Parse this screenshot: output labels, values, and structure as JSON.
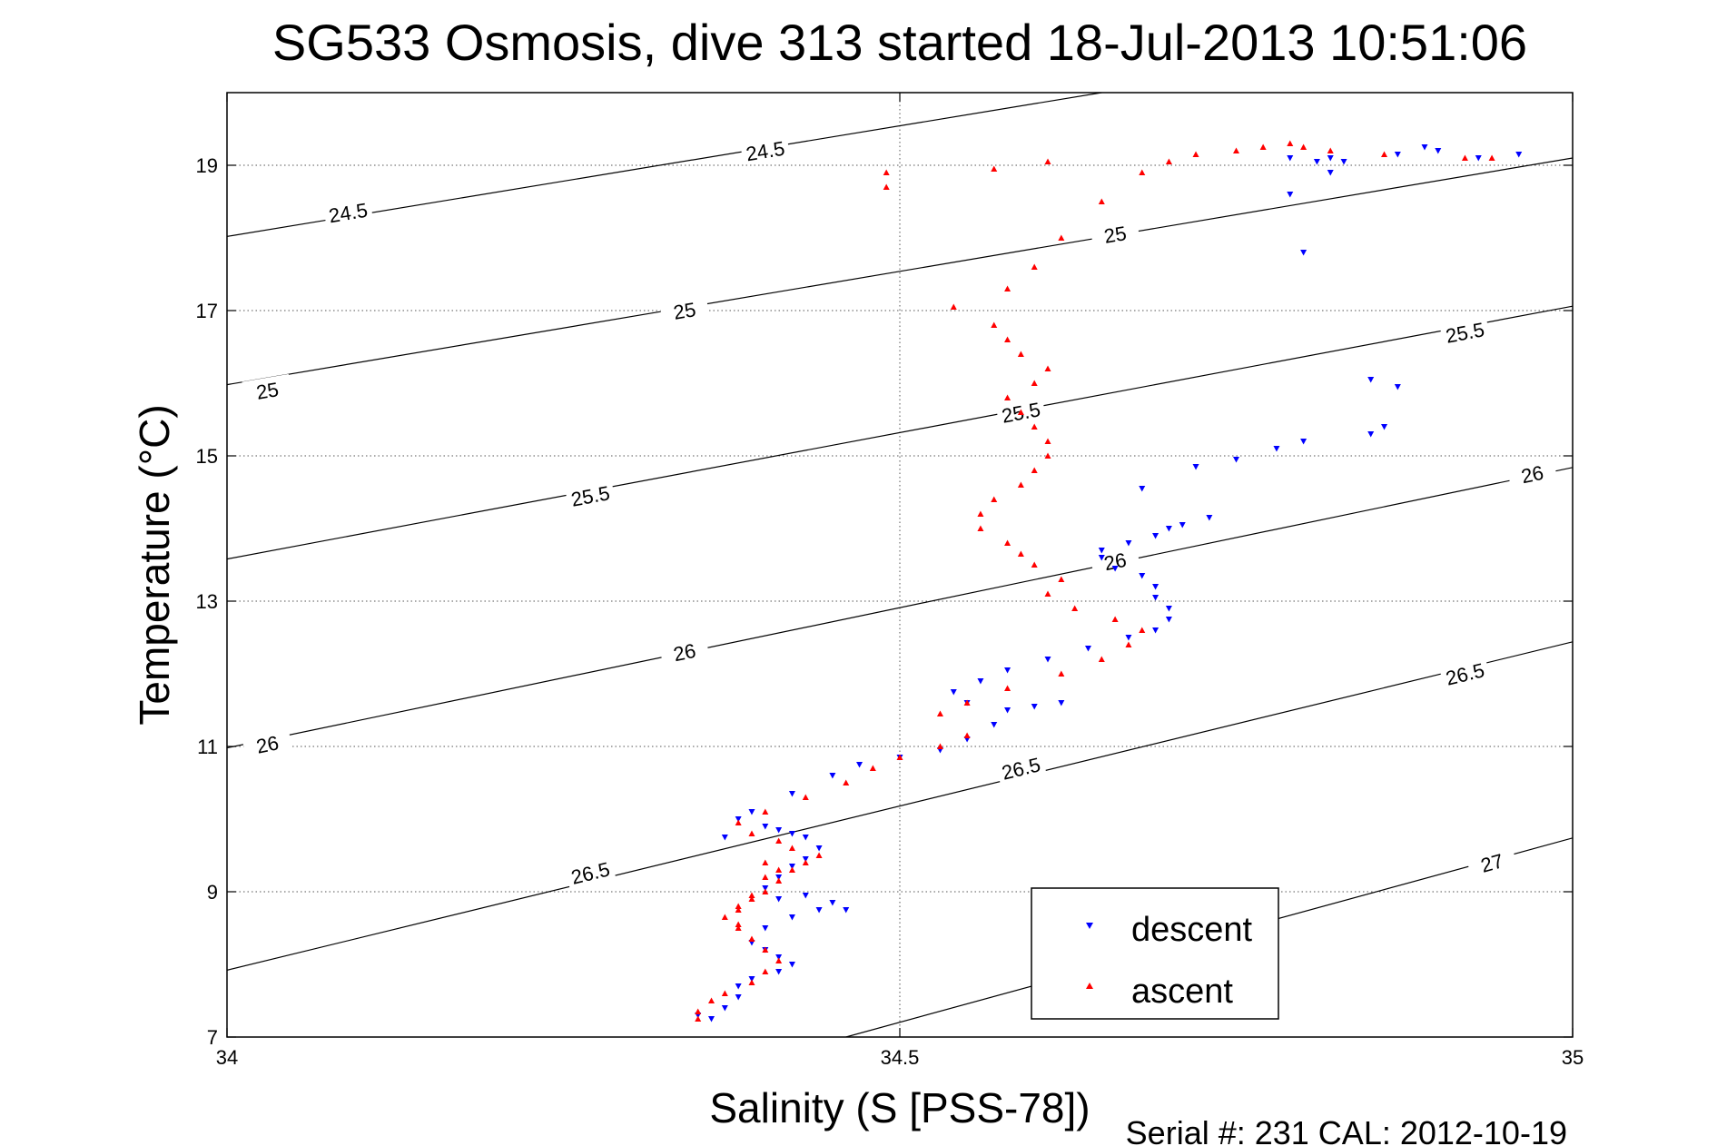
{
  "chart_data": {
    "type": "scatter",
    "title": "SG533 Osmosis, dive 313 started 18-Jul-2013 10:51:06",
    "xlabel": "Salinity (S [PSS-78])",
    "ylabel": "Temperature (°C)",
    "xlim": [
      34,
      35
    ],
    "ylim": [
      7,
      20
    ],
    "x_ticks": [
      34,
      34.5,
      35
    ],
    "x_tick_labels": [
      "34",
      "34.5",
      "35"
    ],
    "y_ticks": [
      7,
      9,
      11,
      13,
      15,
      17,
      19
    ],
    "y_tick_labels": [
      "7",
      "9",
      "11",
      "13",
      "15",
      "17",
      "19"
    ],
    "grid": true,
    "legend_position": "bottom-right",
    "footer": "Serial #: 231  CAL: 2012-10-19",
    "density_contours": [
      {
        "label": "24.5",
        "points": [
          [
            34.0,
            18.02
          ],
          [
            34.65,
            20.0
          ]
        ],
        "label_positions": [
          [
            34.09,
            18.35
          ],
          [
            34.4,
            19.2
          ]
        ]
      },
      {
        "label": "25",
        "points": [
          [
            34.0,
            15.98
          ],
          [
            35.0,
            19.1
          ]
        ],
        "label_positions": [
          [
            34.03,
            15.9
          ],
          [
            34.34,
            17.0
          ],
          [
            34.66,
            18.05
          ]
        ]
      },
      {
        "label": "25.5",
        "points": [
          [
            34.0,
            13.58
          ],
          [
            35.0,
            17.06
          ]
        ],
        "label_positions": [
          [
            34.27,
            14.45
          ],
          [
            34.59,
            15.6
          ],
          [
            34.92,
            16.7
          ]
        ]
      },
      {
        "label": "26",
        "points": [
          [
            34.0,
            10.98
          ],
          [
            35.0,
            14.84
          ]
        ],
        "label_positions": [
          [
            34.03,
            11.03
          ],
          [
            34.34,
            12.3
          ],
          [
            34.66,
            13.55
          ],
          [
            34.97,
            14.75
          ]
        ]
      },
      {
        "label": "26.5",
        "points": [
          [
            34.0,
            7.92
          ],
          [
            35.0,
            12.44
          ]
        ],
        "label_positions": [
          [
            34.27,
            9.26
          ],
          [
            34.59,
            10.7
          ],
          [
            34.92,
            12.0
          ]
        ]
      },
      {
        "label": "27",
        "points": [
          [
            34.46,
            7.0
          ],
          [
            35.0,
            9.74
          ]
        ],
        "label_positions": [
          [
            34.94,
            9.4
          ]
        ]
      }
    ],
    "series": [
      {
        "name": "descent",
        "color": "#0000ff",
        "marker": "triangle-down",
        "x": [
          34.35,
          34.36,
          34.37,
          34.38,
          34.38,
          34.39,
          34.41,
          34.42,
          34.41,
          34.4,
          34.39,
          34.4,
          34.42,
          34.44,
          34.46,
          34.45,
          34.43,
          34.41,
          34.4,
          34.41,
          34.42,
          34.43,
          34.44,
          34.43,
          34.42,
          34.41,
          34.4,
          34.38,
          34.37,
          34.39,
          34.42,
          34.45,
          34.47,
          34.5,
          34.53,
          34.55,
          34.57,
          34.6,
          34.62,
          34.58,
          34.55,
          34.54,
          34.56,
          34.58,
          34.61,
          34.64,
          34.67,
          34.69,
          34.7,
          34.7,
          34.69,
          34.69,
          34.68,
          34.66,
          34.65,
          34.65,
          34.67,
          34.69,
          34.7,
          34.71,
          34.73,
          34.68,
          34.72,
          34.75,
          34.78,
          34.8,
          34.85,
          34.86,
          34.87,
          34.85,
          34.8,
          34.79,
          34.82,
          34.83,
          34.87,
          34.89,
          34.9,
          34.93,
          34.96,
          34.82,
          34.81,
          34.79
        ],
        "y": [
          7.3,
          7.25,
          7.4,
          7.55,
          7.7,
          7.8,
          7.9,
          8.0,
          8.1,
          8.2,
          8.3,
          8.5,
          8.65,
          8.75,
          8.75,
          8.85,
          8.95,
          8.9,
          9.05,
          9.2,
          9.35,
          9.45,
          9.6,
          9.75,
          9.8,
          9.85,
          9.9,
          10.0,
          9.75,
          10.1,
          10.35,
          10.6,
          10.75,
          10.85,
          10.95,
          11.1,
          11.3,
          11.55,
          11.6,
          11.5,
          11.6,
          11.75,
          11.9,
          12.05,
          12.2,
          12.35,
          12.5,
          12.6,
          12.75,
          12.9,
          13.05,
          13.2,
          13.35,
          13.45,
          13.6,
          13.7,
          13.8,
          13.9,
          14.0,
          14.05,
          14.15,
          14.55,
          14.85,
          14.95,
          15.1,
          15.2,
          15.3,
          15.4,
          15.95,
          16.05,
          17.8,
          18.6,
          18.9,
          19.05,
          19.15,
          19.25,
          19.2,
          19.1,
          19.15,
          19.1,
          19.05,
          19.1
        ]
      },
      {
        "name": "ascent",
        "color": "#ff0000",
        "marker": "triangle-up",
        "x": [
          34.35,
          34.35,
          34.36,
          34.37,
          34.39,
          34.4,
          34.41,
          34.4,
          34.39,
          34.38,
          34.37,
          34.38,
          34.39,
          34.4,
          34.41,
          34.42,
          34.43,
          34.44,
          34.42,
          34.41,
          34.39,
          34.38,
          34.4,
          34.41,
          34.4,
          34.39,
          34.38,
          34.38,
          34.4,
          34.43,
          34.46,
          34.48,
          34.5,
          34.53,
          34.55,
          34.53,
          34.55,
          34.58,
          34.62,
          34.65,
          34.67,
          34.68,
          34.66,
          34.63,
          34.61,
          34.62,
          34.6,
          34.59,
          34.58,
          34.56,
          34.56,
          34.57,
          34.59,
          34.6,
          34.61,
          34.61,
          34.6,
          34.59,
          34.58,
          34.6,
          34.61,
          34.59,
          34.58,
          34.57,
          34.54,
          34.58,
          34.6,
          34.62,
          34.65,
          34.68,
          34.7,
          34.72,
          34.75,
          34.77,
          34.79,
          34.8,
          34.82,
          34.86,
          34.92,
          34.94,
          34.49,
          34.49,
          34.57,
          34.61
        ],
        "y": [
          7.25,
          7.35,
          7.5,
          7.6,
          7.75,
          7.9,
          8.05,
          8.2,
          8.35,
          8.5,
          8.65,
          8.8,
          8.9,
          9.0,
          9.15,
          9.3,
          9.4,
          9.5,
          9.6,
          9.7,
          9.8,
          9.95,
          9.4,
          9.3,
          9.2,
          8.95,
          8.75,
          8.55,
          10.1,
          10.3,
          10.5,
          10.7,
          10.85,
          11.0,
          11.15,
          11.45,
          11.6,
          11.8,
          12.0,
          12.2,
          12.4,
          12.6,
          12.75,
          12.9,
          13.1,
          13.3,
          13.5,
          13.65,
          13.8,
          14.0,
          14.2,
          14.4,
          14.6,
          14.8,
          15.0,
          15.2,
          15.4,
          15.6,
          15.8,
          16.0,
          16.2,
          16.4,
          16.6,
          16.8,
          17.05,
          17.3,
          17.6,
          18.0,
          18.5,
          18.9,
          19.05,
          19.15,
          19.2,
          19.25,
          19.3,
          19.25,
          19.2,
          19.15,
          19.1,
          19.1,
          18.9,
          18.7,
          18.95,
          19.05
        ]
      }
    ]
  }
}
